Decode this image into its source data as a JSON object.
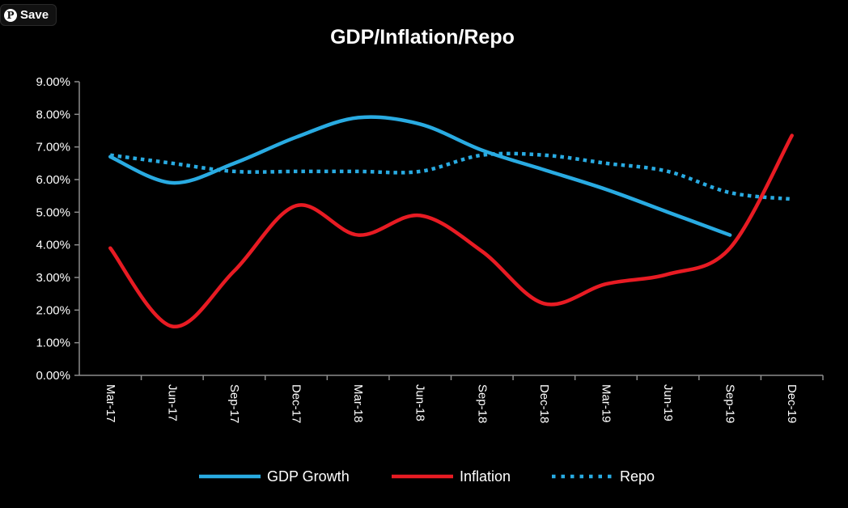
{
  "pin_button": {
    "label": "Save",
    "icon": "pinterest-icon"
  },
  "chart_data": {
    "type": "line",
    "title": "GDP/Inflation/Repo",
    "xlabel": "",
    "ylabel": "",
    "categories": [
      "Mar-17",
      "Jun-17",
      "Sep-17",
      "Dec-17",
      "Mar-18",
      "Jun-18",
      "Sep-18",
      "Dec-18",
      "Mar-19",
      "Jun-19",
      "Sep-19",
      "Dec-19"
    ],
    "ylim": [
      0,
      9
    ],
    "y_ticks": [
      "0.00%",
      "1.00%",
      "2.00%",
      "3.00%",
      "4.00%",
      "5.00%",
      "6.00%",
      "7.00%",
      "8.00%",
      "9.00%"
    ],
    "grid": false,
    "legend_position": "bottom",
    "series": [
      {
        "name": "GDP Growth",
        "color": "#29abe2",
        "style": "solid",
        "values": [
          6.7,
          5.9,
          6.5,
          7.3,
          7.9,
          7.7,
          6.9,
          6.3,
          5.7,
          5.0,
          4.3,
          null
        ]
      },
      {
        "name": "Inflation",
        "color": "#e81b23",
        "style": "solid",
        "values": [
          3.9,
          1.5,
          3.2,
          5.2,
          4.3,
          4.9,
          3.8,
          2.2,
          2.8,
          3.1,
          3.9,
          7.35
        ]
      },
      {
        "name": "Repo",
        "color": "#29abe2",
        "style": "dotted",
        "values": [
          6.75,
          6.5,
          6.25,
          6.25,
          6.25,
          6.25,
          6.75,
          6.75,
          6.5,
          6.25,
          5.6,
          5.4
        ]
      }
    ]
  }
}
